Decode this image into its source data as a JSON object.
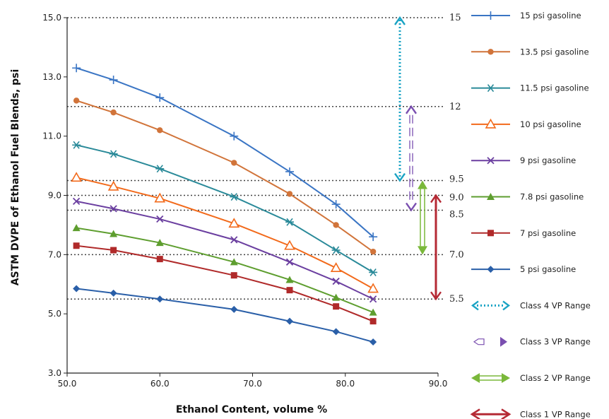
{
  "chart_data": {
    "type": "line",
    "xlabel": "Ethanol Content, volume %",
    "ylabel": "ASTM DVPE of Ethanol Fuel Blends, psi",
    "xlim": [
      50,
      90
    ],
    "ylim": [
      3,
      15
    ],
    "x_ticks": [
      "50.0",
      "60.0",
      "70.0",
      "80.0",
      "90.0"
    ],
    "y_ticks": [
      "3.0",
      "5.0",
      "7.0",
      "9.0",
      "11.0",
      "13.0",
      "15.0"
    ],
    "x": [
      51,
      55,
      60,
      68,
      74,
      79,
      83
    ],
    "series": [
      {
        "name": "15 psi gasoline",
        "color": "#3a75c4",
        "marker": "plus",
        "values": [
          13.3,
          12.9,
          12.3,
          11.0,
          9.8,
          8.7,
          7.6
        ]
      },
      {
        "name": "13.5 psi gasoline",
        "color": "#d1743a",
        "marker": "circle",
        "values": [
          12.2,
          11.8,
          11.2,
          10.1,
          9.05,
          8.0,
          7.1
        ]
      },
      {
        "name": "11.5 psi gasoline",
        "color": "#2a8a99",
        "marker": "asterisk",
        "values": [
          10.7,
          10.4,
          9.9,
          8.95,
          8.1,
          7.15,
          6.4
        ]
      },
      {
        "name": "10 psi gasoline",
        "color": "#f26a1b",
        "marker": "triangle-open",
        "values": [
          9.6,
          9.3,
          8.9,
          8.05,
          7.3,
          6.55,
          5.85
        ]
      },
      {
        "name": "9 psi gasoline",
        "color": "#6b3fa0",
        "marker": "x",
        "values": [
          8.8,
          8.55,
          8.2,
          7.5,
          6.75,
          6.1,
          5.5
        ]
      },
      {
        "name": "7.8 psi gasoline",
        "color": "#5e9e2f",
        "marker": "triangle",
        "values": [
          7.9,
          7.7,
          7.4,
          6.75,
          6.15,
          5.55,
          5.05
        ]
      },
      {
        "name": "7 psi gasoline",
        "color": "#b02a2a",
        "marker": "square",
        "values": [
          7.3,
          7.15,
          6.85,
          6.3,
          5.8,
          5.25,
          4.75
        ]
      },
      {
        "name": "5 psi gasoline",
        "color": "#2a5fa8",
        "marker": "diamond",
        "values": [
          5.85,
          5.7,
          5.5,
          5.15,
          4.75,
          4.4,
          4.05
        ]
      }
    ],
    "reference_lines": [
      {
        "value": 15,
        "label": "15"
      },
      {
        "value": 12,
        "label": "12"
      },
      {
        "value": 9.5,
        "label": "9.5"
      },
      {
        "value": 9.0,
        "label": "9.0"
      },
      {
        "value": 8.5,
        "label": "8.5"
      },
      {
        "value": 7.0,
        "label": "7.0"
      },
      {
        "value": 5.5,
        "label": "5.5"
      }
    ],
    "ranges": [
      {
        "name": "Class 4 VP Range",
        "color": "#1aa3c4",
        "from": 15,
        "to": 9.5,
        "style": "dotted"
      },
      {
        "name": "Class 3 VP Range",
        "color": "#7a4fb0",
        "from": 12,
        "to": 8.5,
        "style": "dashed"
      },
      {
        "name": "Class 2 VP Range",
        "color": "#7ab83a",
        "from": 9.5,
        "to": 7.0,
        "style": "double"
      },
      {
        "name": "Class 1 VP Range",
        "color": "#b52a35",
        "from": 9.0,
        "to": 5.5,
        "style": "solid"
      }
    ],
    "legend_position": "right"
  }
}
